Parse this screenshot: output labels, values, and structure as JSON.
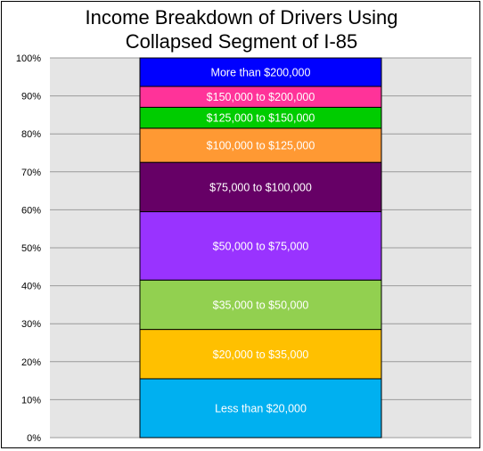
{
  "chart_data": {
    "type": "bar",
    "stacked": true,
    "title_lines": [
      "Income Breakdown of Drivers Using",
      "Collapsed Segment of I-85"
    ],
    "xlabel": "",
    "ylabel": "",
    "ylim": [
      0,
      100
    ],
    "y_ticks": [
      "0%",
      "10%",
      "20%",
      "30%",
      "40%",
      "50%",
      "60%",
      "70%",
      "80%",
      "90%",
      "100%"
    ],
    "grid": true,
    "plot_background": "#e5e5e5",
    "gridline_color": "#9a9a9a",
    "segments": [
      {
        "label": "Less than $20,000",
        "from": 0,
        "to": 15.5,
        "color": "#00b0f0"
      },
      {
        "label": "$20,000 to $35,000",
        "from": 15.5,
        "to": 28.5,
        "color": "#ffc000"
      },
      {
        "label": "$35,000 to $50,000",
        "from": 28.5,
        "to": 41.5,
        "color": "#92d050"
      },
      {
        "label": "$50,000 to $75,000",
        "from": 41.5,
        "to": 59.5,
        "color": "#9933ff"
      },
      {
        "label": "$75,000 to $100,000",
        "from": 59.5,
        "to": 72.5,
        "color": "#660066"
      },
      {
        "label": "$100,000 to $125,000",
        "from": 72.5,
        "to": 81.5,
        "color": "#ff9933"
      },
      {
        "label": "$125,000 to $150,000",
        "from": 81.5,
        "to": 87,
        "color": "#00cc00"
      },
      {
        "label": "$150,000 to $200,000",
        "from": 87,
        "to": 92.5,
        "color": "#ff3399"
      },
      {
        "label": "More than $200,000",
        "from": 92.5,
        "to": 100,
        "color": "#0000ff"
      }
    ]
  }
}
